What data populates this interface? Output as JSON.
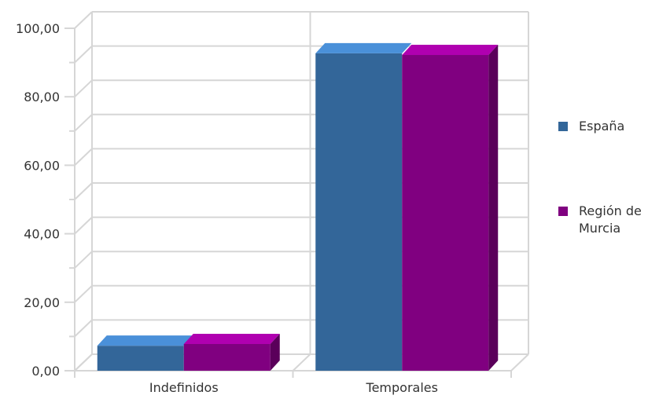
{
  "chart_data": {
    "type": "bar",
    "categories": [
      "Indefinidos",
      "Temporales"
    ],
    "series": [
      {
        "name": "España",
        "values": [
          7.3,
          92.7
        ],
        "color": "#336699"
      },
      {
        "name": "Región de Murcia",
        "values": [
          7.8,
          92.2
        ],
        "color": "#800080"
      }
    ],
    "ylim": [
      0,
      100
    ],
    "yticks": [
      "0,00",
      "20,00",
      "40,00",
      "60,00",
      "80,00",
      "100,00"
    ],
    "grid": true,
    "legend_position": "right",
    "title": "",
    "xlabel": "",
    "ylabel": ""
  }
}
